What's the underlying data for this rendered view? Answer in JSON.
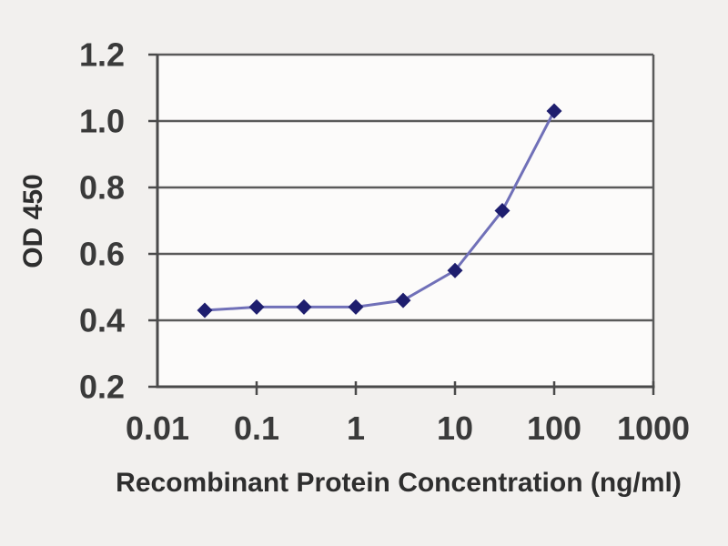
{
  "figure": {
    "background": "#f2f0ee",
    "plot_background": "#fcfbfa"
  },
  "chart_data": {
    "type": "line",
    "title": "",
    "xlabel": "Recombinant Protein Concentration (ng/ml)",
    "ylabel": "OD 450",
    "x_scale": "log",
    "xlim": [
      0.01,
      1000
    ],
    "ylim": [
      0.2,
      1.2
    ],
    "x_ticks": [
      0.01,
      0.1,
      1,
      10,
      100,
      1000
    ],
    "x_tick_labels": [
      "0.01",
      "0.1",
      "1",
      "10",
      "100",
      "1000"
    ],
    "y_ticks": [
      0.2,
      0.4,
      0.6,
      0.8,
      1.0,
      1.2
    ],
    "y_tick_labels": [
      "0.2",
      "0.4",
      "0.6",
      "0.8",
      "1.0",
      "1.2"
    ],
    "grid": "horizontal",
    "legend": "none",
    "series": [
      {
        "name": "OD 450",
        "marker": "diamond",
        "x": [
          0.03,
          0.1,
          0.3,
          1,
          3,
          10,
          30,
          100
        ],
        "y": [
          0.43,
          0.44,
          0.44,
          0.44,
          0.46,
          0.55,
          0.73,
          1.03
        ]
      }
    ],
    "colors": {
      "line": "#7070b8",
      "marker": "#1e1e6e",
      "grid": "#5a5a5a",
      "axis": "#4a4a4a",
      "text": "#2e2e2e"
    }
  }
}
